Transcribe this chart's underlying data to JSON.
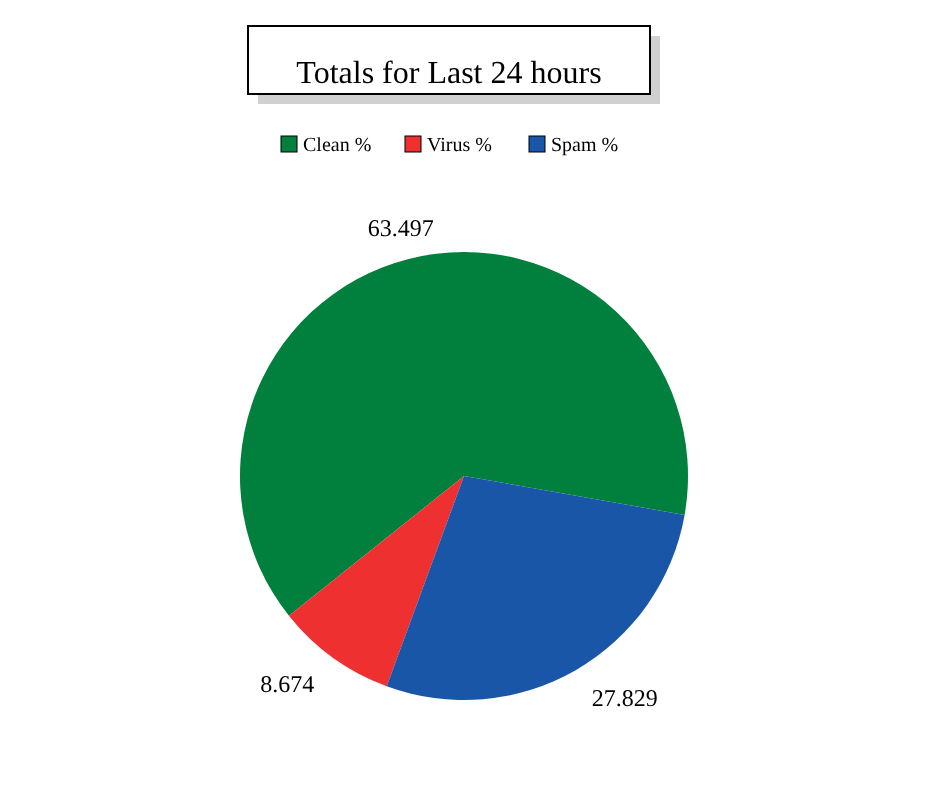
{
  "chart_data": {
    "type": "pie",
    "title": "Totals for Last 24 hours",
    "categories": [
      "Clean %",
      "Virus %",
      "Spam %"
    ],
    "values": [
      63.497,
      8.674,
      27.829
    ],
    "colors": [
      "#00803c",
      "#ee3030",
      "#1a56a8"
    ],
    "data_labels": true,
    "legend": "top"
  }
}
